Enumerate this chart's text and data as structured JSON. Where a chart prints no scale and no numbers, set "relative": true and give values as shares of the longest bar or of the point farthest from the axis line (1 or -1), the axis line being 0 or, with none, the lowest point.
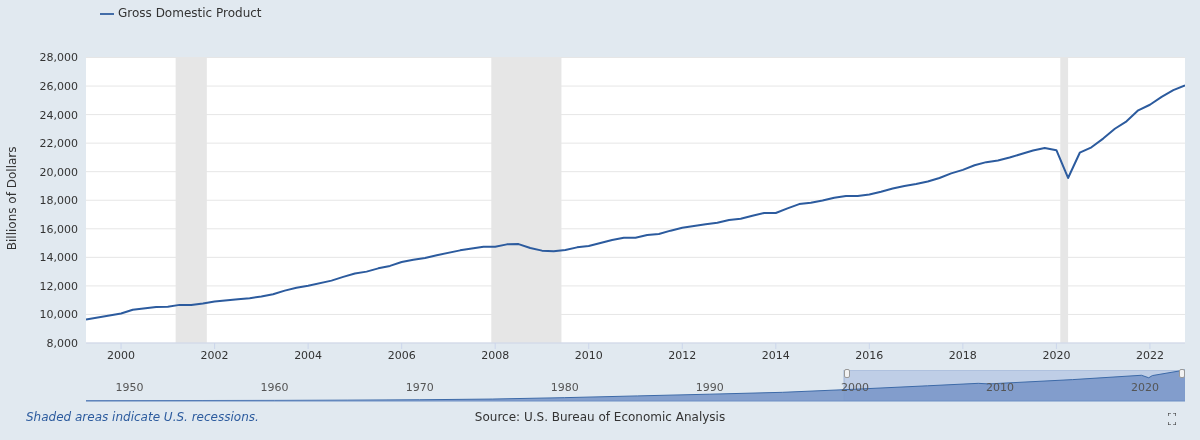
{
  "chart_data": [
    {
      "type": "line",
      "ylabel": "Billions of Dollars",
      "legend": "top left",
      "grid": "y",
      "line_style": "solid",
      "marker": "none",
      "x": [
        "1999-04",
        "2000-01",
        "2000-04",
        "2000-10",
        "2001-01",
        "2001-04",
        "2001-07",
        "2001-10",
        "2002-01",
        "2002-07",
        "2002-10",
        "2003-01",
        "2003-04",
        "2003-07",
        "2003-10",
        "2004-01",
        "2004-07",
        "2004-10",
        "2005-01",
        "2005-04",
        "2005-07",
        "2005-10",
        "2006-01",
        "2006-04",
        "2006-07",
        "2006-10",
        "2007-04",
        "2007-10",
        "2008-01",
        "2008-04",
        "2008-07",
        "2008-10",
        "2009-01",
        "2009-04",
        "2009-07",
        "2009-10",
        "2010-01",
        "2010-04",
        "2010-07",
        "2010-10",
        "2011-01",
        "2011-04",
        "2011-07",
        "2011-10",
        "2012-01",
        "2012-04",
        "2012-07",
        "2012-10",
        "2013-01",
        "2013-04",
        "2013-07",
        "2013-10",
        "2014-01",
        "2014-04",
        "2014-07",
        "2014-10",
        "2015-01",
        "2015-04",
        "2015-07",
        "2015-10",
        "2016-01",
        "2016-04",
        "2016-07",
        "2016-10",
        "2017-01",
        "2017-04",
        "2017-07",
        "2017-10",
        "2018-01",
        "2018-04",
        "2018-07",
        "2018-10",
        "2019-01",
        "2019-04",
        "2019-07",
        "2019-10",
        "2020-01",
        "2020-04",
        "2020-07",
        "2020-10",
        "2021-01",
        "2021-04",
        "2021-07",
        "2021-10",
        "2022-01",
        "2022-04",
        "2022-07",
        "2022-10"
      ],
      "series": [
        {
          "name": "Gross Domestic Product",
          "color": "#2c5b9e",
          "values": [
            9650,
            10070,
            10330,
            10530,
            10540,
            10670,
            10670,
            10770,
            10900,
            11070,
            11140,
            11250,
            11410,
            11670,
            11870,
            12010,
            12370,
            12630,
            12870,
            13000,
            13230,
            13400,
            13670,
            13830,
            13950,
            14150,
            14490,
            14750,
            14750,
            14910,
            14930,
            14650,
            14470,
            14420,
            14510,
            14700,
            14800,
            15010,
            15220,
            15370,
            15380,
            15560,
            15640,
            15870,
            16070,
            16200,
            16320,
            16420,
            16620,
            16700,
            16920,
            17110,
            17110,
            17430,
            17730,
            17830,
            17980,
            18180,
            18300,
            18300,
            18400,
            18600,
            18820,
            19000,
            19140,
            19310,
            19560,
            19880,
            20130,
            20450,
            20670,
            20790,
            20990,
            21240,
            21490,
            21660,
            21510,
            19560,
            21330,
            21710,
            22320,
            23010,
            23530,
            24300,
            24690,
            25240,
            25710,
            26050
          ]
        }
      ],
      "xlim": [
        "1999-04",
        "2022-10"
      ],
      "xticks": [
        "2000",
        "2002",
        "2004",
        "2006",
        "2008",
        "2010",
        "2012",
        "2014",
        "2016",
        "2018",
        "2020",
        "2022"
      ],
      "ylim": [
        8000,
        28000
      ],
      "yticks": [
        {
          "value": 8000,
          "label": "8,000"
        },
        {
          "value": 10000,
          "label": "10,000"
        },
        {
          "value": 12000,
          "label": "12,000"
        },
        {
          "value": 14000,
          "label": "14,000"
        },
        {
          "value": 16000,
          "label": "16,000"
        },
        {
          "value": 18000,
          "label": "18,000"
        },
        {
          "value": 20000,
          "label": "20,000"
        },
        {
          "value": 22000,
          "label": "22,000"
        },
        {
          "value": 24000,
          "label": "24,000"
        },
        {
          "value": 26000,
          "label": "26,000"
        },
        {
          "value": 28000,
          "label": "28,000"
        }
      ],
      "bands": [
        {
          "axis": "x",
          "from": "2001-03",
          "to": "2001-11",
          "color": "#e6e6e6"
        },
        {
          "axis": "x",
          "from": "2007-12",
          "to": "2009-06",
          "color": "#e6e6e6"
        },
        {
          "axis": "x",
          "from": "2020-02",
          "to": "2020-04",
          "color": "#e6e6e6"
        }
      ],
      "annotations": [
        "Shaded areas indicate U.S. recessions.",
        "Source: U.S. Bureau of Economic Analysis"
      ]
    },
    {
      "type": "area",
      "relative": true,
      "tick_labels": "x",
      "x": [
        "1947-01",
        "1955-01",
        "1960-01",
        "1965-01",
        "1970-01",
        "1975-01",
        "1980-01",
        "1985-01",
        "1990-01",
        "1995-01",
        "2000-01",
        "2005-01",
        "2008-07",
        "2009-04",
        "2010-01",
        "2015-01",
        "2019-10",
        "2020-04",
        "2020-07",
        "2022-10"
      ],
      "series": [
        {
          "color": "#7b98c9",
          "values": [
            0.01,
            0.016,
            0.02,
            0.028,
            0.04,
            0.063,
            0.108,
            0.164,
            0.22,
            0.28,
            0.38,
            0.49,
            0.57,
            0.55,
            0.57,
            0.69,
            0.83,
            0.75,
            0.82,
            1.0
          ]
        }
      ],
      "xlim": [
        "1947-01",
        "2022-10"
      ],
      "xticks": [
        "1950",
        "1960",
        "1970",
        "1980",
        "1990",
        "2000",
        "2010",
        "2020"
      ],
      "bands": [
        {
          "axis": "x",
          "from": "1999-04",
          "to": "2022-10",
          "color": "#b7c7e3"
        }
      ]
    }
  ]
}
